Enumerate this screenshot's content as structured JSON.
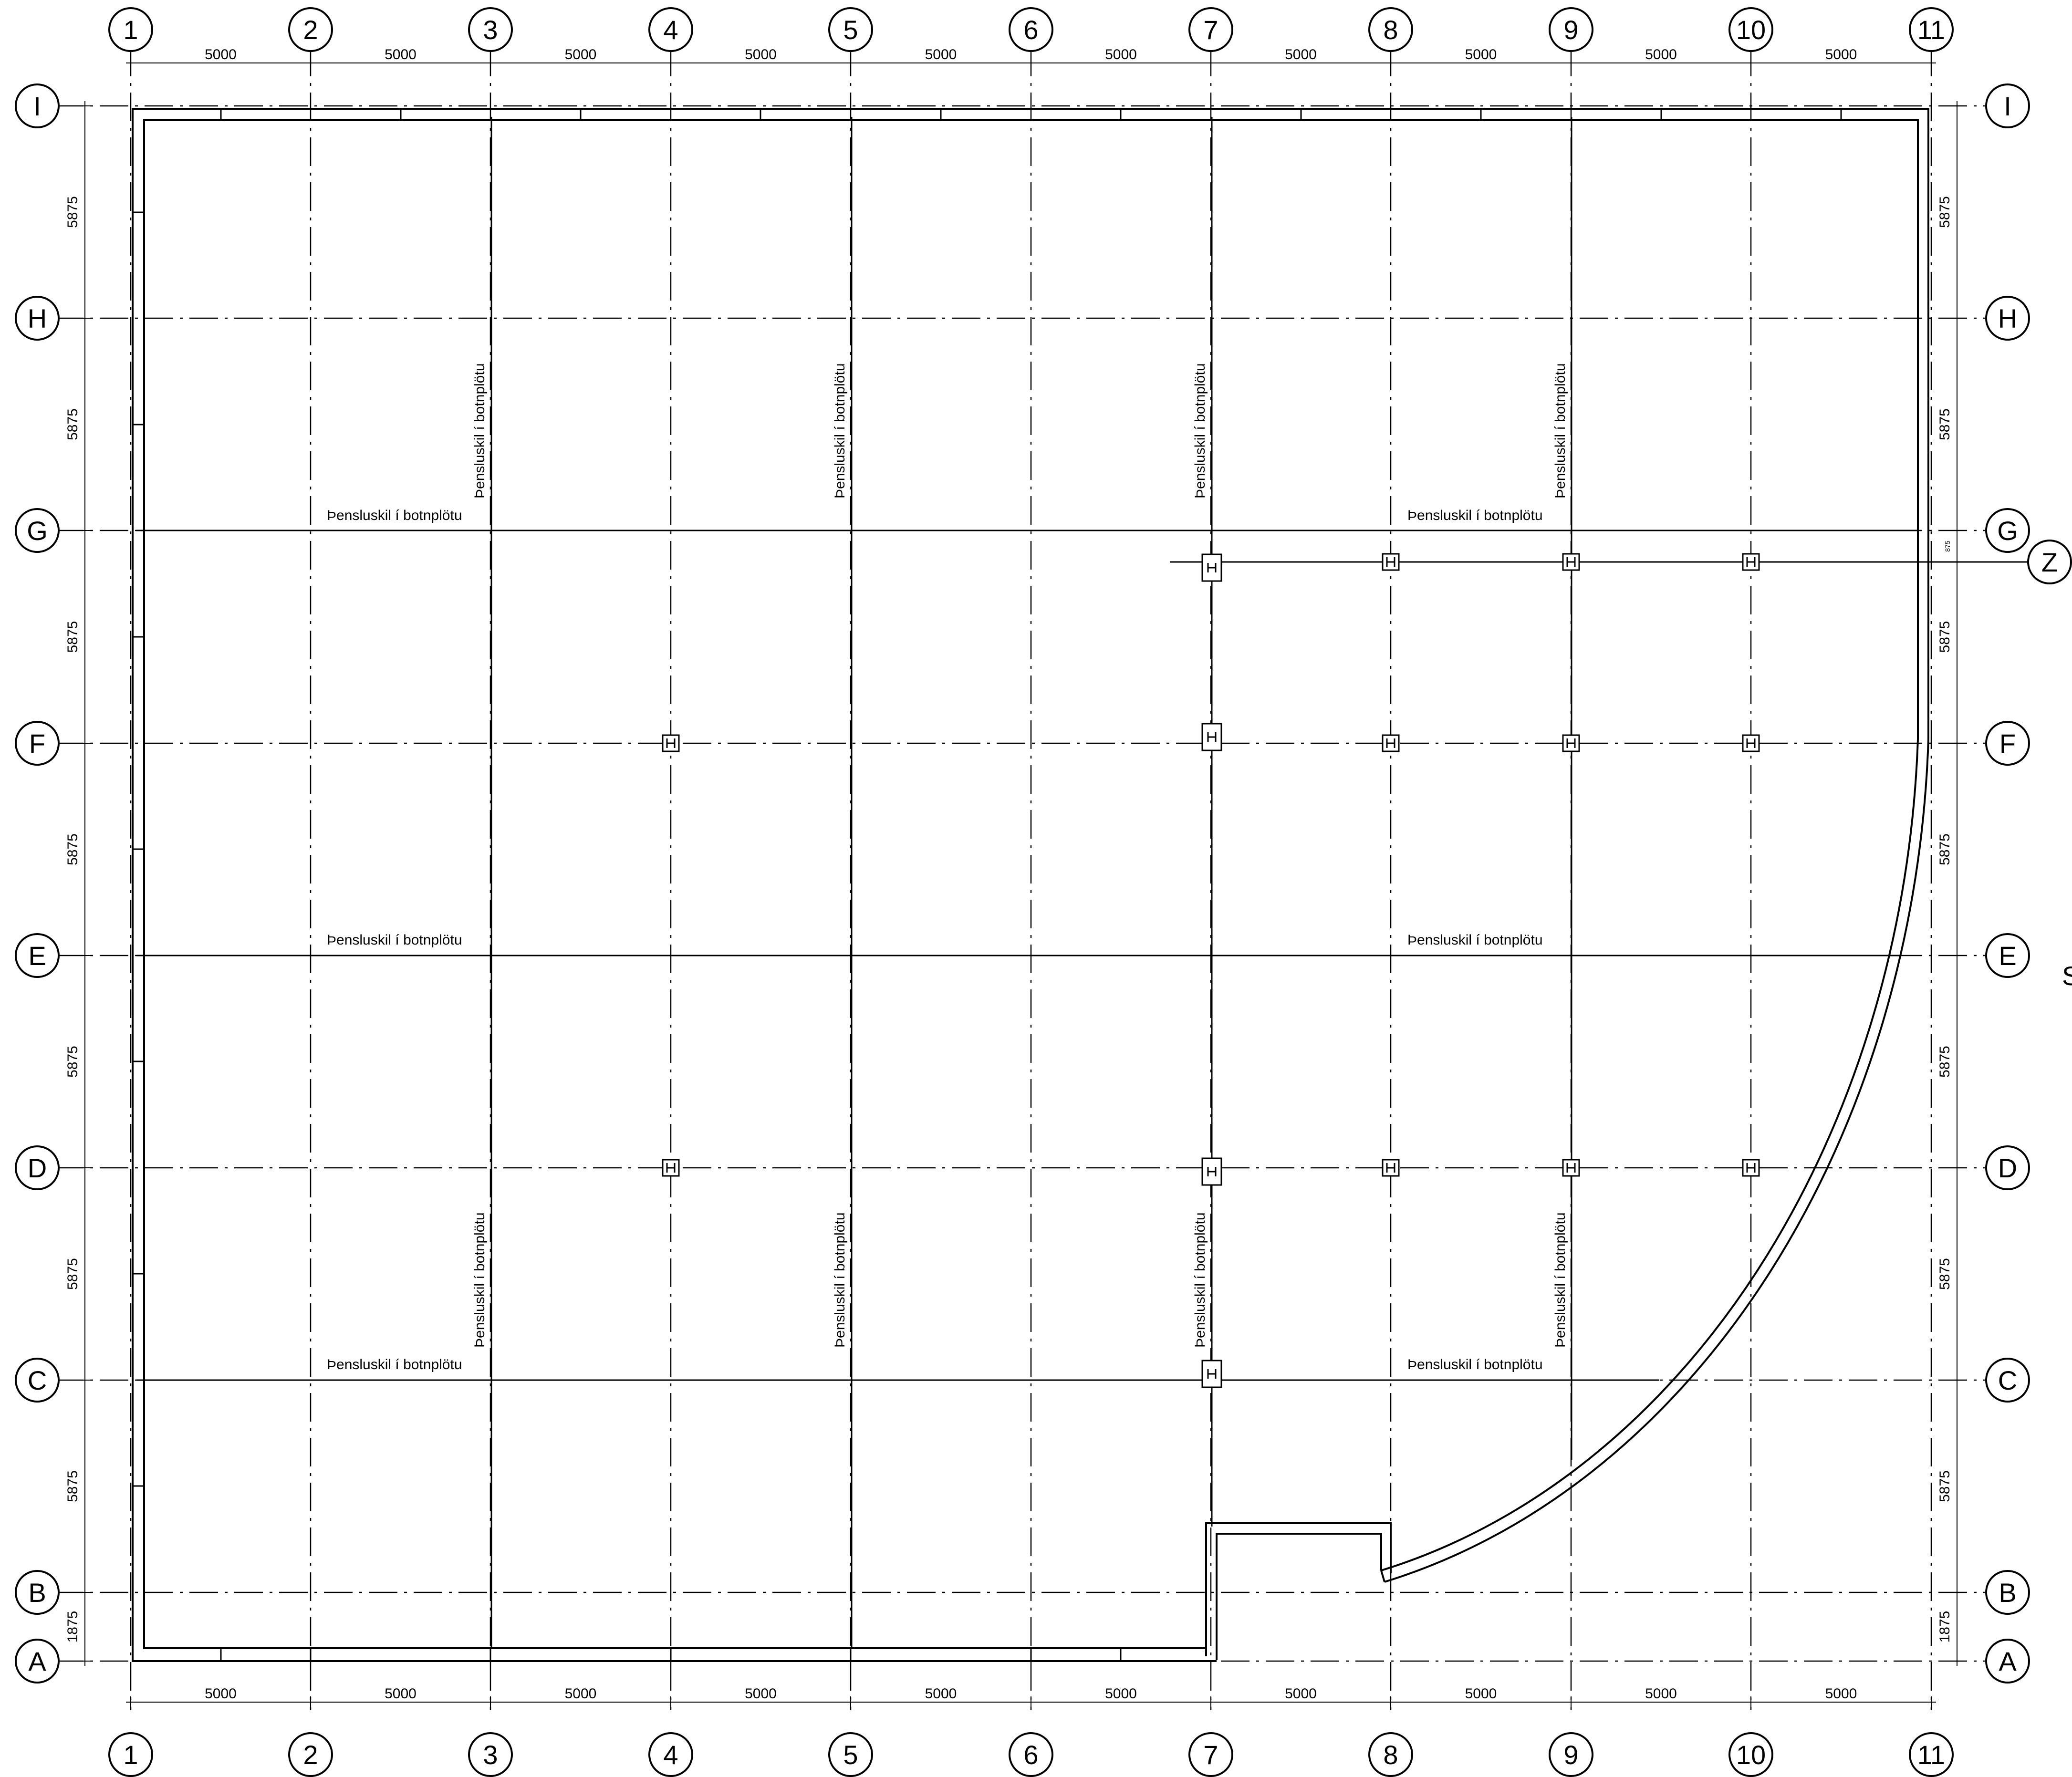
{
  "plan": {
    "gridlines": {
      "columns": [
        "1",
        "2",
        "3",
        "4",
        "5",
        "6",
        "7",
        "8",
        "9",
        "10",
        "11"
      ],
      "rows": [
        "I",
        "H",
        "G",
        "F",
        "E",
        "D",
        "C",
        "B",
        "A"
      ],
      "extra_row": "Z"
    },
    "dimensions": {
      "column_spacing_label": "5000",
      "row_spacings": [
        "5875",
        "5875",
        "5875",
        "5875",
        "5875",
        "5875",
        "5875",
        "1875"
      ],
      "z_offset_label": "875"
    },
    "joint_note": "Þensluskil í botnplötu",
    "margin_text": "S"
  }
}
